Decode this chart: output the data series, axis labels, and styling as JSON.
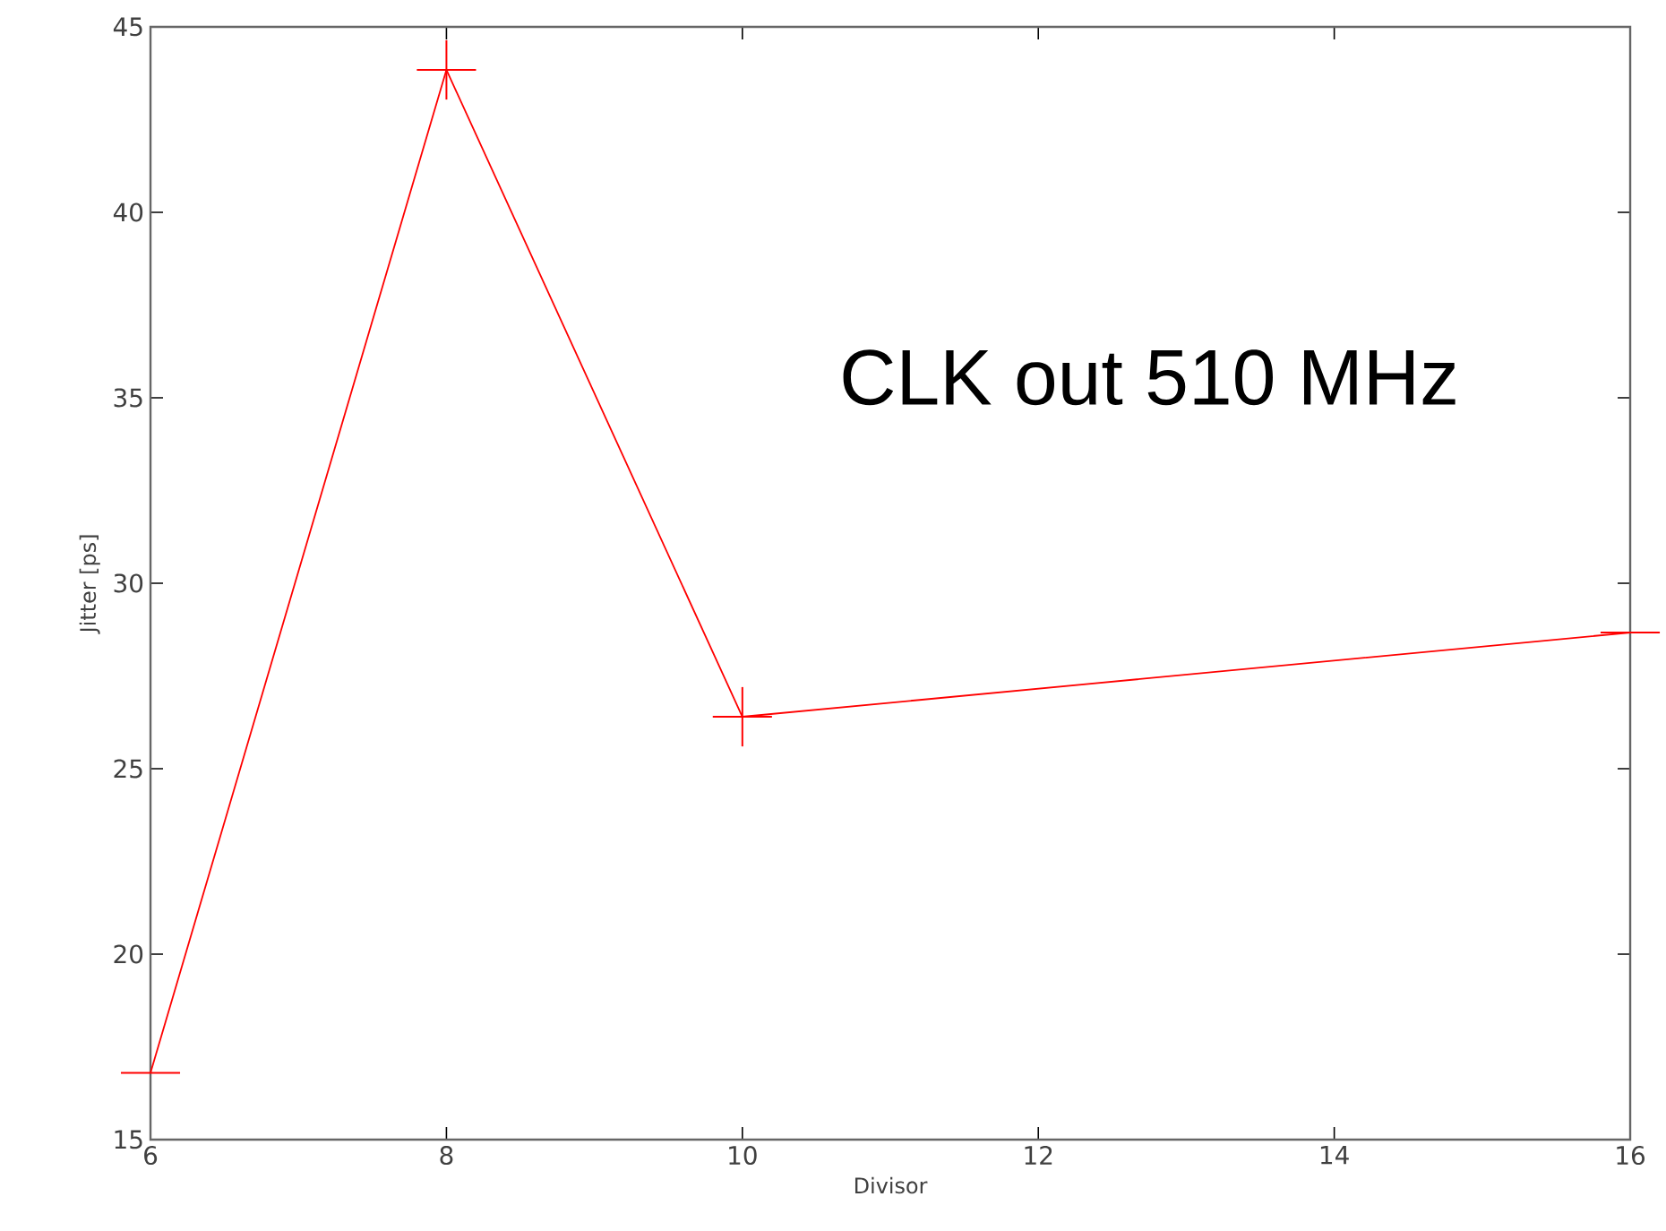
{
  "chart_data": {
    "type": "line",
    "xlabel": "Divisor",
    "ylabel": "Jitter [ps]",
    "annotations": [
      "CLK out 510 MHz"
    ],
    "x": [
      6,
      8,
      10,
      16
    ],
    "series": [
      {
        "color": "#ff0000",
        "values": [
          16.8,
          43.84,
          26.4,
          28.67
        ],
        "errors": [
          null,
          0.8,
          0.8,
          null
        ],
        "xerrors": [
          0.2,
          0.2,
          0.2,
          0.2
        ]
      }
    ],
    "xlim": [
      6,
      16
    ],
    "xticks": [
      6,
      8,
      10,
      12,
      14,
      16
    ],
    "ylim": [
      15,
      45
    ],
    "yticks": [
      15,
      20,
      25,
      30,
      35,
      40,
      45
    ],
    "marker": "none",
    "line_style": "solid"
  }
}
